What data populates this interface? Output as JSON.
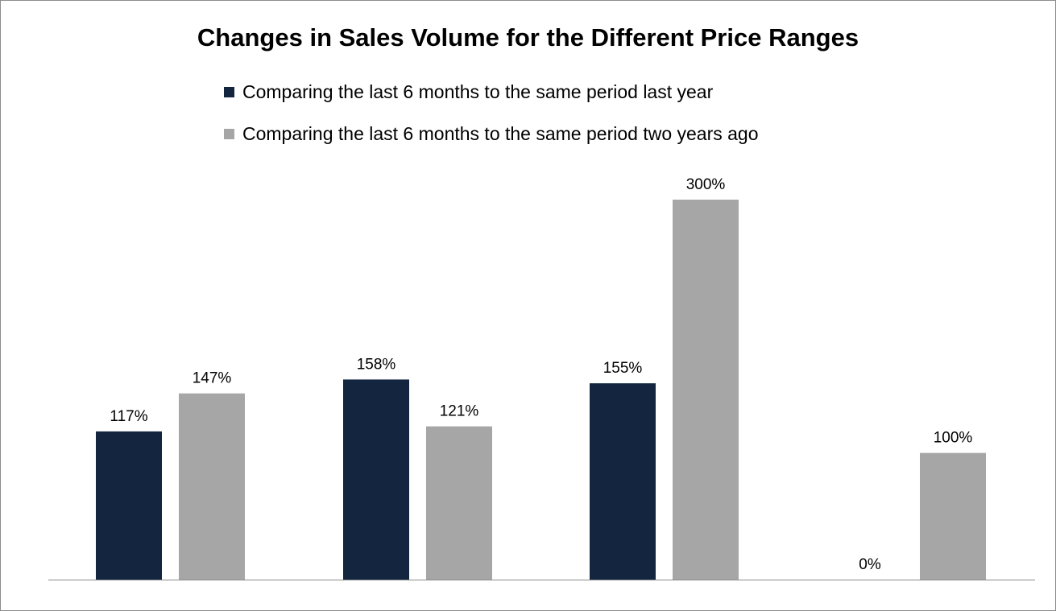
{
  "chart_data": {
    "type": "bar",
    "title": "Changes in Sales Volume for the Different Price Ranges",
    "categories": [
      "",
      "",
      "",
      ""
    ],
    "series": [
      {
        "name": "Comparing the last 6 months to the same period last year",
        "color": "#13253f",
        "values": [
          117,
          158,
          155,
          0
        ],
        "labels": [
          "117%",
          "158%",
          "155%",
          "0%"
        ]
      },
      {
        "name": "Comparing the last 6 months to the same period two years ago",
        "color": "#a6a6a6",
        "values": [
          147,
          121,
          300,
          100
        ],
        "labels": [
          "147%",
          "121%",
          "300%",
          "100%"
        ]
      }
    ],
    "ylim": [
      0,
      300
    ],
    "unit": "%",
    "grid": false,
    "legend_position": "top"
  }
}
